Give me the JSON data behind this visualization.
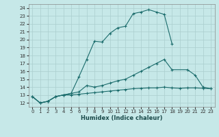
{
  "xlabel": "Humidex (Indice chaleur)",
  "xlim": [
    -0.5,
    23.5
  ],
  "ylim": [
    11.5,
    24.5
  ],
  "xticks": [
    0,
    1,
    2,
    3,
    4,
    5,
    6,
    7,
    8,
    9,
    10,
    11,
    12,
    13,
    14,
    15,
    16,
    17,
    18,
    19,
    20,
    21,
    22,
    23
  ],
  "yticks": [
    12,
    13,
    14,
    15,
    16,
    17,
    18,
    19,
    20,
    21,
    22,
    23,
    24
  ],
  "bg_color": "#c6e8e8",
  "line_color": "#1a6b6b",
  "grid_color": "#aacece",
  "line1_x": [
    0,
    1,
    2,
    3,
    4,
    5,
    6,
    7,
    8,
    9,
    10,
    11,
    12,
    13,
    14,
    15,
    16,
    17,
    18
  ],
  "line1_y": [
    12.8,
    12.0,
    12.2,
    12.8,
    13.0,
    13.2,
    15.3,
    17.5,
    19.8,
    19.7,
    20.8,
    21.5,
    21.7,
    23.3,
    23.5,
    23.8,
    23.5,
    23.2,
    19.5
  ],
  "line2_x": [
    0,
    1,
    2,
    3,
    4,
    5,
    6,
    7,
    8,
    9,
    10,
    11,
    12,
    13,
    14,
    15,
    16,
    17,
    18,
    20,
    21,
    22,
    23
  ],
  "line2_y": [
    12.8,
    12.0,
    12.2,
    12.8,
    13.0,
    13.2,
    13.4,
    14.2,
    14.0,
    14.2,
    14.5,
    14.8,
    15.0,
    15.5,
    16.0,
    16.5,
    17.0,
    17.5,
    16.2,
    16.2,
    15.5,
    14.0,
    13.8
  ],
  "line3_x": [
    0,
    1,
    2,
    3,
    4,
    5,
    6,
    7,
    8,
    9,
    10,
    11,
    12,
    13,
    14,
    15,
    16,
    17,
    18,
    19,
    20,
    21,
    22,
    23
  ],
  "line3_y": [
    12.8,
    12.0,
    12.2,
    12.8,
    13.0,
    13.0,
    13.1,
    13.2,
    13.3,
    13.4,
    13.5,
    13.6,
    13.7,
    13.8,
    13.85,
    13.9,
    13.9,
    14.0,
    13.9,
    13.85,
    13.9,
    13.9,
    13.85,
    13.8
  ]
}
